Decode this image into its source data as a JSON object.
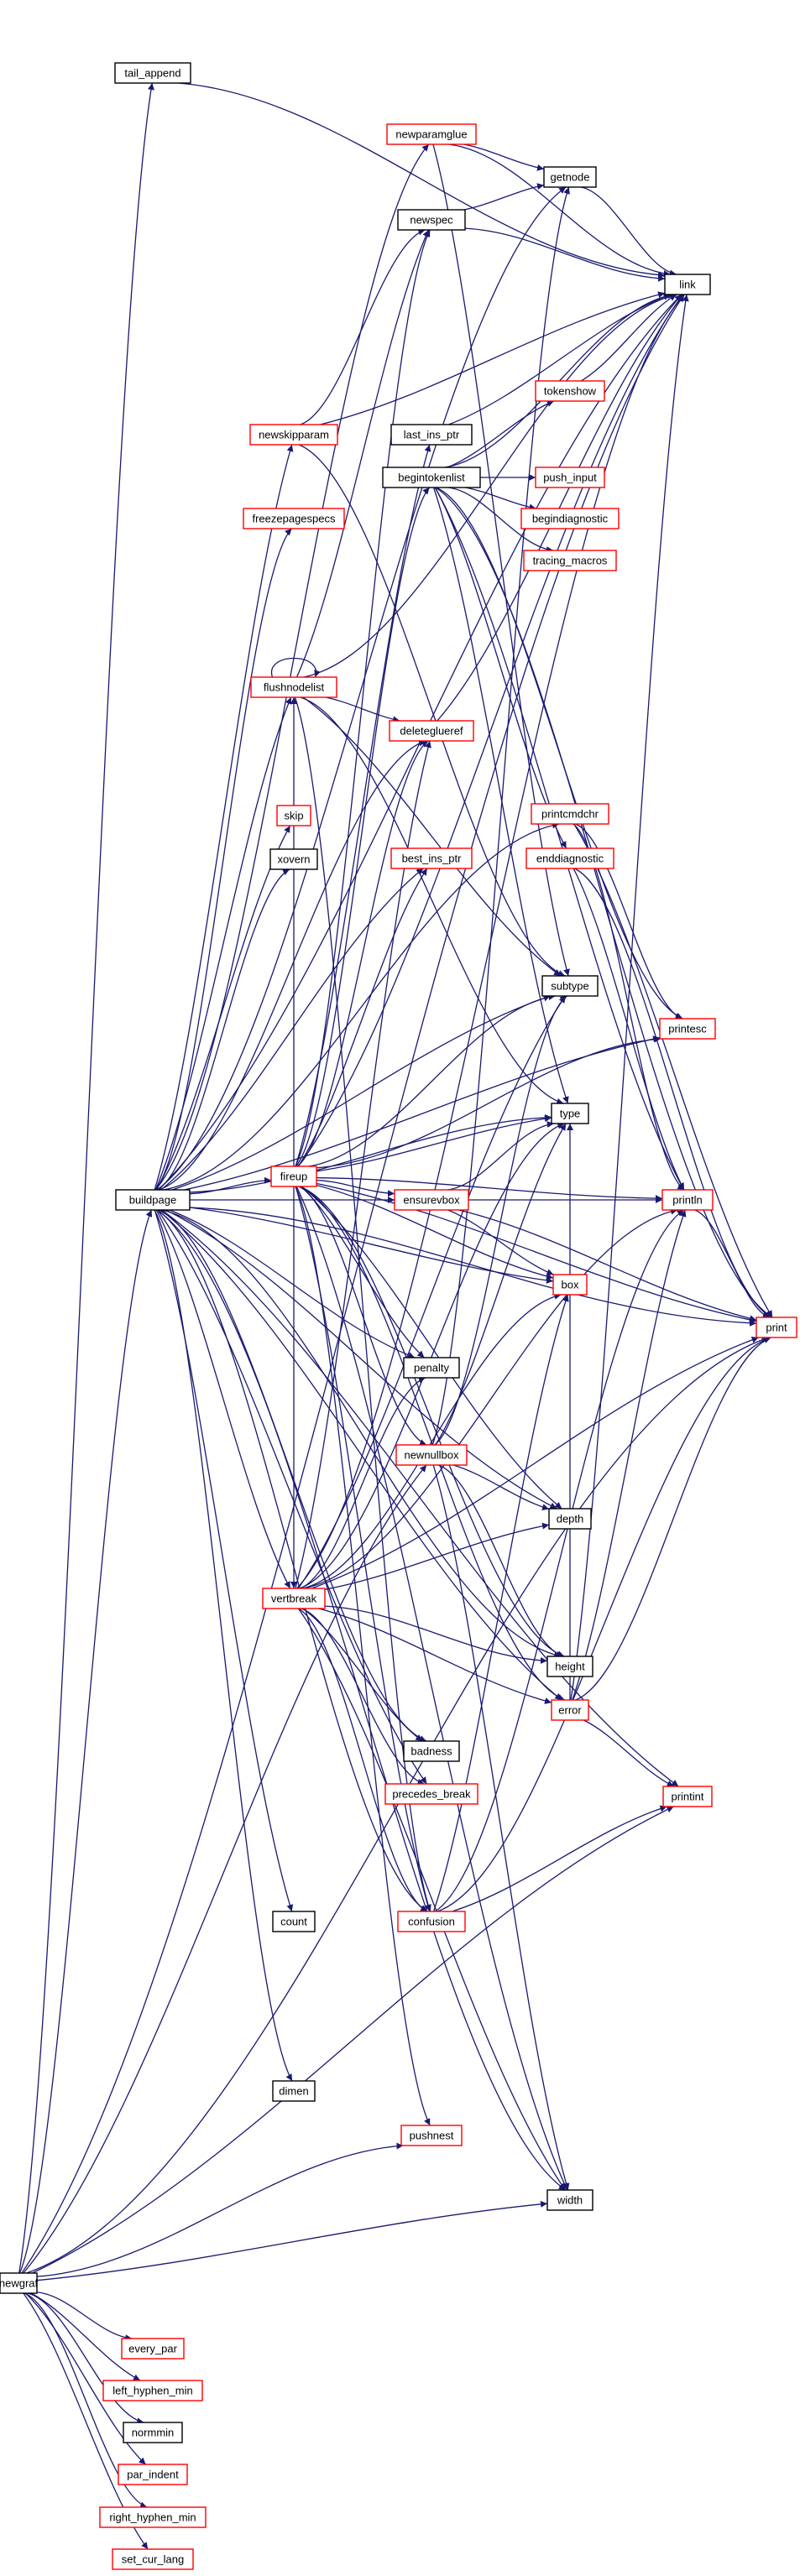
{
  "colors": {
    "edge": "#191970",
    "node_border_black": "#000000",
    "node_border_red": "#ff0000",
    "root_fill": "#bfbfbf"
  },
  "nodes": [
    {
      "id": "newgraf",
      "label": "newgraf",
      "border": "black",
      "fill": "gray"
    },
    {
      "id": "tail_append",
      "label": "tail_append",
      "border": "black"
    },
    {
      "id": "link",
      "label": "link",
      "border": "black"
    },
    {
      "id": "newparamglue",
      "label": "newparamglue",
      "border": "red"
    },
    {
      "id": "getnode",
      "label": "getnode",
      "border": "black"
    },
    {
      "id": "newspec",
      "label": "newspec",
      "border": "black"
    },
    {
      "id": "tokenshow",
      "label": "tokenshow",
      "border": "red"
    },
    {
      "id": "newskipparam",
      "label": "newskipparam",
      "border": "red"
    },
    {
      "id": "last_ins_ptr",
      "label": "last_ins_ptr",
      "border": "black"
    },
    {
      "id": "begintokenlist",
      "label": "begintokenlist",
      "border": "black"
    },
    {
      "id": "push_input",
      "label": "push_input",
      "border": "red"
    },
    {
      "id": "freezepagespecs",
      "label": "freezepagespecs",
      "border": "red"
    },
    {
      "id": "begindiagnostic",
      "label": "begindiagnostic",
      "border": "red"
    },
    {
      "id": "tracing_macros",
      "label": "tracing_macros",
      "border": "red"
    },
    {
      "id": "flushnodelist",
      "label": "flushnodelist",
      "border": "red"
    },
    {
      "id": "deleteglueref",
      "label": "deleteglueref",
      "border": "red"
    },
    {
      "id": "printcmdchr",
      "label": "printcmdchr",
      "border": "red"
    },
    {
      "id": "skip",
      "label": "skip",
      "border": "red"
    },
    {
      "id": "best_ins_ptr",
      "label": "best_ins_ptr",
      "border": "red"
    },
    {
      "id": "enddiagnostic",
      "label": "enddiagnostic",
      "border": "red"
    },
    {
      "id": "xovern",
      "label": "xovern",
      "border": "black"
    },
    {
      "id": "subtype",
      "label": "subtype",
      "border": "black"
    },
    {
      "id": "printesc",
      "label": "printesc",
      "border": "red"
    },
    {
      "id": "type",
      "label": "type",
      "border": "black"
    },
    {
      "id": "buildpage",
      "label": "buildpage",
      "border": "black"
    },
    {
      "id": "fireup",
      "label": "fireup",
      "border": "red"
    },
    {
      "id": "ensurevbox",
      "label": "ensurevbox",
      "border": "red"
    },
    {
      "id": "println",
      "label": "println",
      "border": "red"
    },
    {
      "id": "box",
      "label": "box",
      "border": "red"
    },
    {
      "id": "print",
      "label": "print",
      "border": "red"
    },
    {
      "id": "penalty",
      "label": "penalty",
      "border": "black"
    },
    {
      "id": "newnullbox",
      "label": "newnullbox",
      "border": "red"
    },
    {
      "id": "depth",
      "label": "depth",
      "border": "black"
    },
    {
      "id": "vertbreak",
      "label": "vertbreak",
      "border": "red"
    },
    {
      "id": "height",
      "label": "height",
      "border": "black"
    },
    {
      "id": "error",
      "label": "error",
      "border": "red"
    },
    {
      "id": "badness",
      "label": "badness",
      "border": "black"
    },
    {
      "id": "precedes_break",
      "label": "precedes_break",
      "border": "red"
    },
    {
      "id": "printint",
      "label": "printint",
      "border": "red"
    },
    {
      "id": "count",
      "label": "count",
      "border": "black"
    },
    {
      "id": "confusion",
      "label": "confusion",
      "border": "red"
    },
    {
      "id": "dimen",
      "label": "dimen",
      "border": "black"
    },
    {
      "id": "pushnest",
      "label": "pushnest",
      "border": "red"
    },
    {
      "id": "width",
      "label": "width",
      "border": "black"
    },
    {
      "id": "every_par",
      "label": "every_par",
      "border": "red"
    },
    {
      "id": "left_hyphen_min",
      "label": "left_hyphen_min",
      "border": "red"
    },
    {
      "id": "normmin",
      "label": "normmin",
      "border": "black"
    },
    {
      "id": "par_indent",
      "label": "par_indent",
      "border": "red"
    },
    {
      "id": "right_hyphen_min",
      "label": "right_hyphen_min",
      "border": "red"
    },
    {
      "id": "set_cur_lang",
      "label": "set_cur_lang",
      "border": "red"
    }
  ],
  "edges": [
    [
      "newgraf",
      "tail_append"
    ],
    [
      "newgraf",
      "link"
    ],
    [
      "newgraf",
      "buildpage"
    ],
    [
      "newgraf",
      "newnullbox"
    ],
    [
      "newgraf",
      "pushnest"
    ],
    [
      "newgraf",
      "width"
    ],
    [
      "newgraf",
      "print"
    ],
    [
      "newgraf",
      "printint"
    ],
    [
      "newgraf",
      "every_par"
    ],
    [
      "newgraf",
      "left_hyphen_min"
    ],
    [
      "newgraf",
      "normmin"
    ],
    [
      "newgraf",
      "par_indent"
    ],
    [
      "newgraf",
      "right_hyphen_min"
    ],
    [
      "newgraf",
      "set_cur_lang"
    ],
    [
      "tail_append",
      "link"
    ],
    [
      "newparamglue",
      "getnode"
    ],
    [
      "newparamglue",
      "link"
    ],
    [
      "newparamglue",
      "subtype"
    ],
    [
      "getnode",
      "link"
    ],
    [
      "newspec",
      "getnode"
    ],
    [
      "newspec",
      "link"
    ],
    [
      "tokenshow",
      "link"
    ],
    [
      "newskipparam",
      "newspec"
    ],
    [
      "newskipparam",
      "link"
    ],
    [
      "newskipparam",
      "subtype"
    ],
    [
      "last_ins_ptr",
      "link"
    ],
    [
      "begintokenlist",
      "link"
    ],
    [
      "begintokenlist",
      "tokenshow"
    ],
    [
      "begintokenlist",
      "push_input"
    ],
    [
      "begintokenlist",
      "begindiagnostic"
    ],
    [
      "begintokenlist",
      "tracing_macros"
    ],
    [
      "begintokenlist",
      "enddiagnostic"
    ],
    [
      "begintokenlist",
      "printesc"
    ],
    [
      "begintokenlist",
      "println"
    ],
    [
      "begintokenlist",
      "print"
    ],
    [
      "begintokenlist",
      "type"
    ],
    [
      "flushnodelist",
      "flushnodelist"
    ],
    [
      "flushnodelist",
      "deleteglueref"
    ],
    [
      "flushnodelist",
      "link"
    ],
    [
      "flushnodelist",
      "newspec"
    ],
    [
      "flushnodelist",
      "type"
    ],
    [
      "flushnodelist",
      "subtype"
    ],
    [
      "flushnodelist",
      "confusion"
    ],
    [
      "deleteglueref",
      "link"
    ],
    [
      "printcmdchr",
      "printesc"
    ],
    [
      "printcmdchr",
      "print"
    ],
    [
      "printcmdchr",
      "println"
    ],
    [
      "enddiagnostic",
      "println"
    ],
    [
      "enddiagnostic",
      "print"
    ],
    [
      "buildpage",
      "link"
    ],
    [
      "buildpage",
      "newparamglue"
    ],
    [
      "buildpage",
      "newskipparam"
    ],
    [
      "buildpage",
      "freezepagespecs"
    ],
    [
      "buildpage",
      "flushnodelist"
    ],
    [
      "buildpage",
      "deleteglueref"
    ],
    [
      "buildpage",
      "skip"
    ],
    [
      "buildpage",
      "xovern"
    ],
    [
      "buildpage",
      "best_ins_ptr"
    ],
    [
      "buildpage",
      "fireup"
    ],
    [
      "buildpage",
      "vertbreak"
    ],
    [
      "buildpage",
      "printcmdchr"
    ],
    [
      "buildpage",
      "subtype"
    ],
    [
      "buildpage",
      "type"
    ],
    [
      "buildpage",
      "penalty"
    ],
    [
      "buildpage",
      "badness"
    ],
    [
      "buildpage",
      "precedes_break"
    ],
    [
      "buildpage",
      "height"
    ],
    [
      "buildpage",
      "depth"
    ],
    [
      "buildpage",
      "width"
    ],
    [
      "buildpage",
      "count"
    ],
    [
      "buildpage",
      "dimen"
    ],
    [
      "buildpage",
      "error"
    ],
    [
      "buildpage",
      "confusion"
    ],
    [
      "buildpage",
      "box"
    ],
    [
      "buildpage",
      "ensurevbox"
    ],
    [
      "buildpage",
      "printint"
    ],
    [
      "buildpage",
      "print"
    ],
    [
      "buildpage",
      "printesc"
    ],
    [
      "buildpage",
      "getnode"
    ],
    [
      "fireup",
      "link"
    ],
    [
      "fireup",
      "begintokenlist"
    ],
    [
      "fireup",
      "last_ins_ptr"
    ],
    [
      "fireup",
      "newspec"
    ],
    [
      "fireup",
      "flushnodelist"
    ],
    [
      "fireup",
      "deleteglueref"
    ],
    [
      "fireup",
      "best_ins_ptr"
    ],
    [
      "fireup",
      "subtype"
    ],
    [
      "fireup",
      "type"
    ],
    [
      "fireup",
      "ensurevbox"
    ],
    [
      "fireup",
      "box"
    ],
    [
      "fireup",
      "println"
    ],
    [
      "fireup",
      "print"
    ],
    [
      "fireup",
      "printesc"
    ],
    [
      "fireup",
      "penalty"
    ],
    [
      "fireup",
      "newnullbox"
    ],
    [
      "fireup",
      "depth"
    ],
    [
      "fireup",
      "height"
    ],
    [
      "fireup",
      "vertbreak"
    ],
    [
      "fireup",
      "error"
    ],
    [
      "fireup",
      "confusion"
    ],
    [
      "fireup",
      "pushnest"
    ],
    [
      "fireup",
      "width"
    ],
    [
      "ensurevbox",
      "type"
    ],
    [
      "ensurevbox",
      "box"
    ],
    [
      "ensurevbox",
      "println"
    ],
    [
      "ensurevbox",
      "print"
    ],
    [
      "newnullbox",
      "getnode"
    ],
    [
      "newnullbox",
      "type"
    ],
    [
      "newnullbox",
      "subtype"
    ],
    [
      "newnullbox",
      "depth"
    ],
    [
      "newnullbox",
      "height"
    ],
    [
      "newnullbox",
      "width"
    ],
    [
      "vertbreak",
      "link"
    ],
    [
      "vertbreak",
      "deleteglueref"
    ],
    [
      "vertbreak",
      "type"
    ],
    [
      "vertbreak",
      "subtype"
    ],
    [
      "vertbreak",
      "penalty"
    ],
    [
      "vertbreak",
      "depth"
    ],
    [
      "vertbreak",
      "height"
    ],
    [
      "vertbreak",
      "badness"
    ],
    [
      "vertbreak",
      "precedes_break"
    ],
    [
      "vertbreak",
      "error"
    ],
    [
      "vertbreak",
      "confusion"
    ],
    [
      "vertbreak",
      "width"
    ],
    [
      "vertbreak",
      "println"
    ],
    [
      "vertbreak",
      "print"
    ],
    [
      "vertbreak",
      "box"
    ],
    [
      "error",
      "println"
    ],
    [
      "error",
      "print"
    ],
    [
      "error",
      "printint"
    ],
    [
      "error",
      "type"
    ],
    [
      "error",
      "link"
    ],
    [
      "confusion",
      "print"
    ],
    [
      "confusion",
      "printint"
    ],
    [
      "confusion",
      "println"
    ],
    [
      "confusion",
      "box"
    ],
    [
      "println",
      "print"
    ]
  ]
}
